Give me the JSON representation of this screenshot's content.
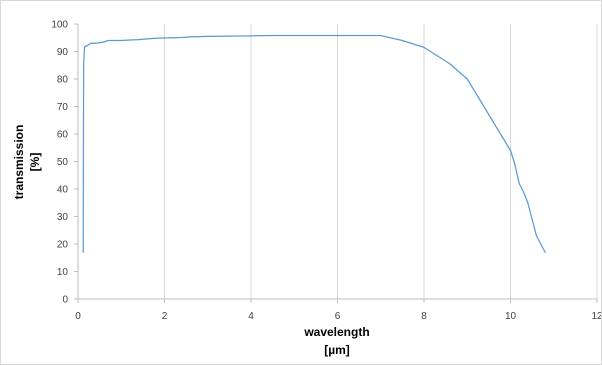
{
  "chart_data": {
    "type": "line",
    "title": "",
    "xlabel": "wavelength",
    "xlabel_unit": "[µm]",
    "ylabel": "transmission",
    "ylabel_unit": "[%]",
    "xlim": [
      0,
      12
    ],
    "ylim": [
      0,
      100
    ],
    "xticks": [
      0,
      2,
      4,
      6,
      8,
      10,
      12
    ],
    "yticks": [
      0,
      10,
      20,
      30,
      40,
      50,
      60,
      70,
      80,
      90,
      100
    ],
    "grid": "vertical",
    "legend": "none",
    "line_color": "#5b9bd5",
    "series": [
      {
        "x": [
          0.12,
          0.13,
          0.15,
          0.17,
          0.2,
          0.25,
          0.3,
          0.35,
          0.4,
          0.5,
          0.6,
          0.7,
          0.8,
          1.0,
          1.2,
          1.4,
          1.6,
          1.8,
          2.0,
          2.2,
          2.4,
          2.6,
          2.8,
          3.0,
          3.5,
          4.0,
          4.5,
          5.0,
          5.5,
          6.0,
          6.5,
          7.0,
          7.5,
          8.0,
          8.6,
          9.0,
          9.5,
          10.0,
          10.1,
          10.2,
          10.3,
          10.4,
          10.6,
          10.8
        ],
        "y": [
          17,
          85,
          91.5,
          92,
          92,
          92.5,
          93,
          93,
          93,
          93.2,
          93.5,
          94,
          94,
          94,
          94.2,
          94.3,
          94.6,
          94.8,
          94.9,
          95,
          95.1,
          95.3,
          95.4,
          95.5,
          95.6,
          95.7,
          95.8,
          95.8,
          95.8,
          95.8,
          95.8,
          95.8,
          94,
          91.5,
          85.5,
          80,
          67,
          54,
          49,
          42,
          39,
          35,
          23,
          17
        ]
      }
    ]
  }
}
